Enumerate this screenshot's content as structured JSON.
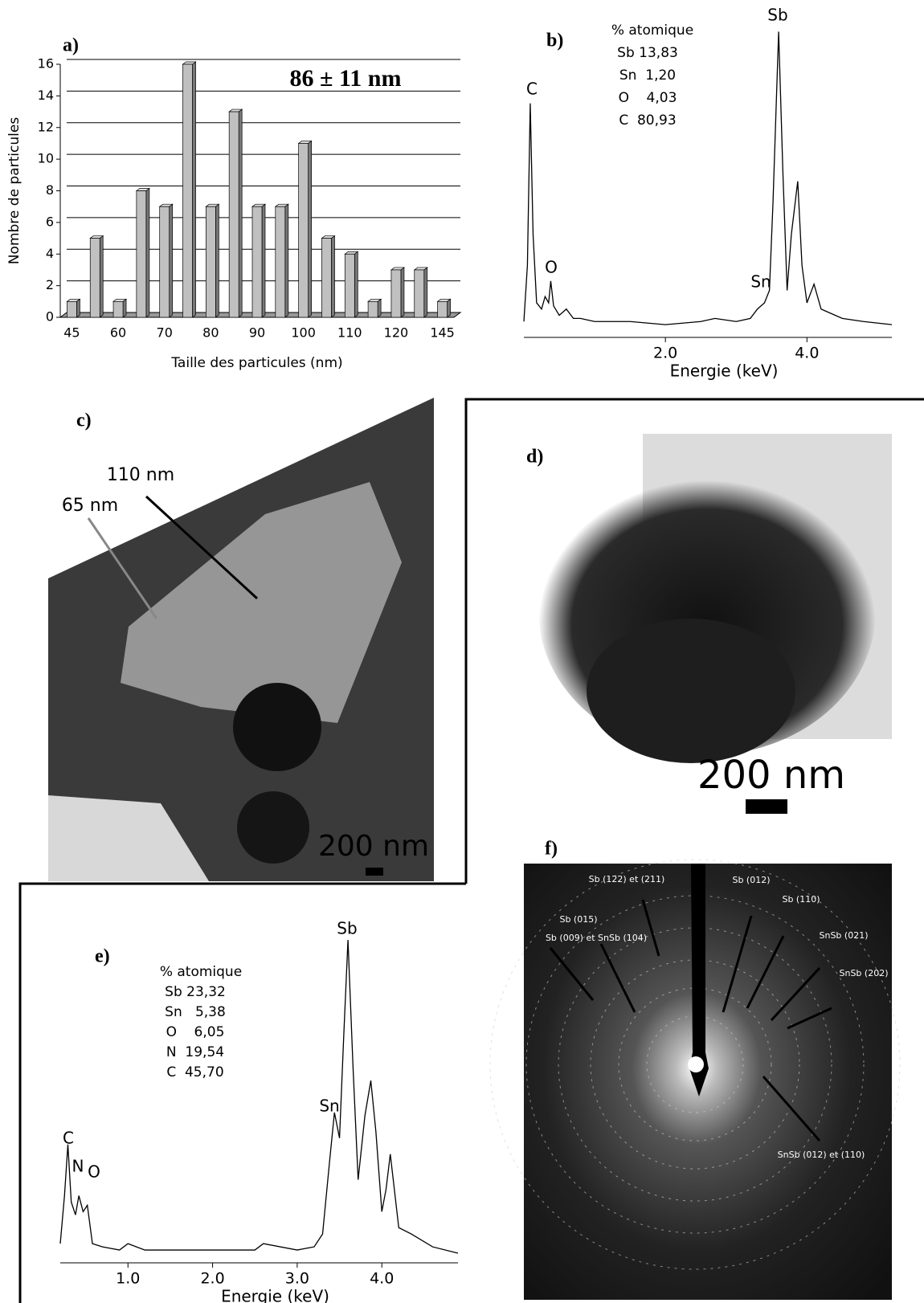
{
  "chart_data": [
    {
      "type": "bar",
      "label": "a)",
      "annotation": "86 ± 11 nm",
      "x_label": "Taille des particules (nm)",
      "y_label": "Nombre de particules",
      "categories": [
        "45",
        null,
        "60",
        null,
        "70",
        null,
        "80",
        null,
        "90",
        null,
        "100",
        null,
        "110",
        null,
        "120",
        null,
        "145"
      ],
      "values": [
        1,
        5,
        1,
        8,
        7,
        16,
        7,
        13,
        7,
        7,
        11,
        5,
        4,
        1,
        3,
        3,
        1
      ],
      "color": "#c0c0c0",
      "ylim": [
        0,
        16
      ],
      "yticks": [
        0,
        2,
        4,
        6,
        8,
        10,
        12,
        14,
        16
      ],
      "grid": true
    },
    {
      "type": "line",
      "label": "b)",
      "x_label": "Energie (keV)",
      "annotations": [
        "% atomique",
        "Sb 13,83",
        "Sn  1,20",
        "O    4,03",
        "C  80,93",
        "C",
        "O",
        "Sn",
        "Sb"
      ],
      "x": [
        0,
        0.05,
        0.09,
        0.13,
        0.18,
        0.25,
        0.3,
        0.35,
        0.38,
        0.42,
        0.5,
        0.6,
        0.7,
        0.8,
        1.0,
        1.5,
        2.0,
        2.5,
        2.7,
        3.0,
        3.2,
        3.3,
        3.4,
        3.47,
        3.52,
        3.6,
        3.66,
        3.72,
        3.78,
        3.87,
        3.93,
        4.0,
        4.1,
        4.2,
        4.3,
        4.5,
        4.8,
        5.2
      ],
      "values": [
        2,
        20,
        72,
        30,
        8,
        6,
        10,
        8,
        15,
        7,
        4,
        6,
        3,
        3,
        2,
        2,
        1,
        2,
        3,
        2,
        3,
        6,
        8,
        12,
        40,
        95,
        50,
        12,
        30,
        47,
        20,
        8,
        14,
        6,
        5,
        3,
        2,
        1
      ],
      "color": "#000000",
      "xlim": [
        0,
        5.2
      ],
      "ylim": [
        0,
        100
      ],
      "xticks": [
        {
          "value": 2,
          "label": "2.0"
        },
        {
          "value": 4,
          "label": "4.0"
        }
      ]
    },
    {
      "type": "image",
      "label": "c)",
      "annotations": [
        "110 nm",
        "65 nm",
        "200 nm"
      ]
    },
    {
      "type": "image",
      "label": "d)",
      "annotations": [
        "200 nm"
      ]
    },
    {
      "type": "line",
      "label": "e)",
      "x_label": "Energie (keV)",
      "annotations": [
        "% atomique",
        "Sb 23,32",
        "Sn   5,38",
        "O    6,05",
        "N  19,54",
        "C  45,70",
        "C",
        "N",
        "O",
        "Sn",
        "Sb"
      ],
      "x": [
        0.2,
        0.25,
        0.29,
        0.33,
        0.38,
        0.42,
        0.47,
        0.52,
        0.58,
        0.7,
        0.9,
        1.0,
        1.2,
        1.5,
        2.0,
        2.5,
        2.6,
        3.0,
        3.2,
        3.3,
        3.38,
        3.44,
        3.5,
        3.55,
        3.6,
        3.66,
        3.72,
        3.8,
        3.87,
        3.93,
        4.0,
        4.05,
        4.1,
        4.2,
        4.35,
        4.6,
        4.9
      ],
      "values": [
        5,
        20,
        36,
        18,
        14,
        20,
        15,
        17,
        5,
        4,
        3,
        5,
        3,
        3,
        3,
        3,
        5,
        3,
        4,
        8,
        30,
        46,
        38,
        70,
        100,
        60,
        25,
        45,
        56,
        40,
        15,
        22,
        33,
        10,
        8,
        4,
        2
      ],
      "color": "#000000",
      "xlim": [
        0.2,
        4.9
      ],
      "ylim": [
        0,
        100
      ],
      "xticks": [
        {
          "value": 1,
          "label": "1.0"
        },
        {
          "value": 2,
          "label": "2.0"
        },
        {
          "value": 3,
          "label": "3.0"
        },
        {
          "value": 4,
          "label": "4.0"
        }
      ]
    },
    {
      "type": "image",
      "label": "f)",
      "annotations": [
        "Sb (122) et (211)",
        "Sb (012)",
        "Sb (110)",
        "Sb (015)",
        "Sb (009) et SnSb (104)",
        "SnSb (021)",
        "SnSb (202)",
        "SnSb (012) et (110)"
      ]
    }
  ]
}
